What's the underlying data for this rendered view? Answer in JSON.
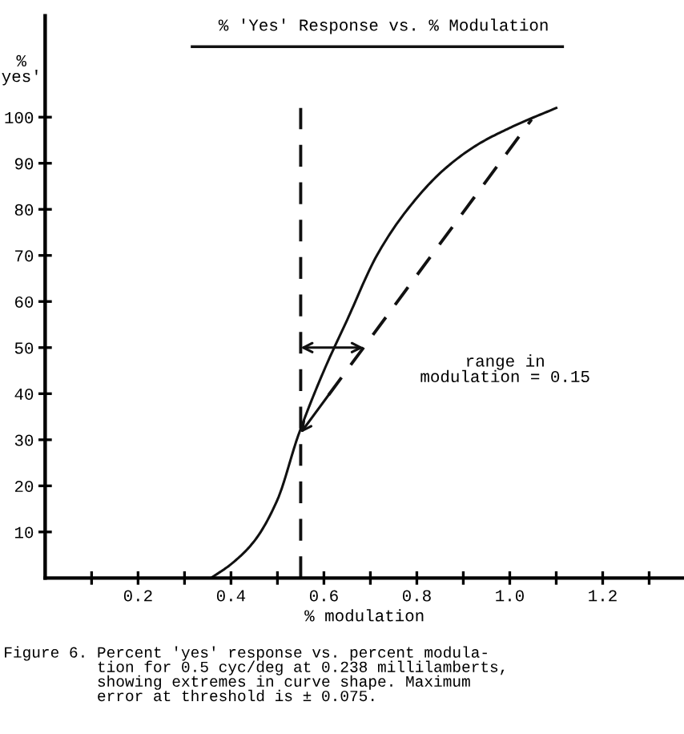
{
  "chart_data": {
    "type": "line",
    "title": "% 'Yes' Response vs. % Modulation",
    "xlabel": "% modulation",
    "ylabel": "%\nyes'",
    "series": [
      {
        "color": "#111111",
        "line_style": "solid",
        "x": [
          0.357,
          0.4,
          0.45,
          0.5,
          0.545,
          0.6,
          0.65,
          0.714,
          0.78,
          0.857,
          0.93,
          1.007,
          1.1
        ],
        "values": [
          0,
          3,
          8,
          17,
          31,
          45,
          56,
          70,
          80,
          88.5,
          94,
          98,
          102
        ]
      },
      {
        "color": "#111111",
        "line_style": "dashed",
        "x": [
          0.55,
          0.55
        ],
        "values": [
          0,
          102
        ]
      },
      {
        "color": "#111111",
        "line_style": "dashed",
        "x": [
          0.61,
          1.047
        ],
        "values": [
          39.7,
          99.5
        ]
      }
    ],
    "xlim": [
      0,
      1.375
    ],
    "ylim": [
      0,
      122
    ],
    "xticks": [
      {
        "value": 0.1,
        "label": null
      },
      0.2,
      {
        "value": 0.3,
        "label": null
      },
      0.4,
      {
        "value": 0.5,
        "label": null
      },
      0.6,
      {
        "value": 0.7,
        "label": null
      },
      0.8,
      {
        "value": 0.9,
        "label": null
      },
      {
        "value": 1.0,
        "label": "1.0"
      },
      {
        "value": 1.1,
        "label": null
      },
      1.2,
      {
        "value": 1.3,
        "label": null
      }
    ],
    "yticks": [
      10,
      20,
      30,
      40,
      50,
      60,
      70,
      80,
      90,
      100
    ],
    "grid": false,
    "marker": "none",
    "annotations": [
      "range in\nmodulation = 0.15",
      "Figure 6. Percent 'yes' response vs. percent modula-\n          tion for 0.5 cyc/deg at 0.238 millilamberts,\n          showing extremes in curve shape. Maximum\n          error at threshold is ± 0.075."
    ]
  }
}
